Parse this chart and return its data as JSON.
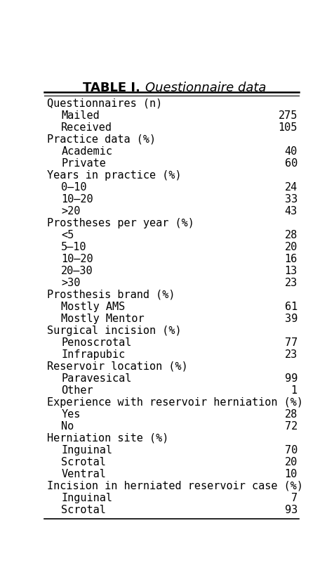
{
  "title_bold": "TABLE I.",
  "title_italic": "Questionnaire data",
  "rows": [
    {
      "label": "Questionnaires (n)",
      "value": "",
      "indent": false
    },
    {
      "label": "Mailed",
      "value": "275",
      "indent": true
    },
    {
      "label": "Received",
      "value": "105",
      "indent": true
    },
    {
      "label": "Practice data (%)",
      "value": "",
      "indent": false
    },
    {
      "label": "Academic",
      "value": "40",
      "indent": true
    },
    {
      "label": "Private",
      "value": "60",
      "indent": true
    },
    {
      "label": "Years in practice (%)",
      "value": "",
      "indent": false
    },
    {
      "label": "0–10",
      "value": "24",
      "indent": true
    },
    {
      "label": "10–20",
      "value": "33",
      "indent": true
    },
    {
      "label": ">20",
      "value": "43",
      "indent": true
    },
    {
      "label": "Prostheses per year (%)",
      "value": "",
      "indent": false
    },
    {
      "label": "<5",
      "value": "28",
      "indent": true
    },
    {
      "label": "5–10",
      "value": "20",
      "indent": true
    },
    {
      "label": "10–20",
      "value": "16",
      "indent": true
    },
    {
      "label": "20–30",
      "value": "13",
      "indent": true
    },
    {
      "label": ">30",
      "value": "23",
      "indent": true
    },
    {
      "label": "Prosthesis brand (%)",
      "value": "",
      "indent": false
    },
    {
      "label": "Mostly AMS",
      "value": "61",
      "indent": true
    },
    {
      "label": "Mostly Mentor",
      "value": "39",
      "indent": true
    },
    {
      "label": "Surgical incision (%)",
      "value": "",
      "indent": false
    },
    {
      "label": "Penoscrotal",
      "value": "77",
      "indent": true
    },
    {
      "label": "Infrapubic",
      "value": "23",
      "indent": true
    },
    {
      "label": "Reservoir location (%)",
      "value": "",
      "indent": false
    },
    {
      "label": "Paravesical",
      "value": "99",
      "indent": true
    },
    {
      "label": "Other",
      "value": "1",
      "indent": true
    },
    {
      "label": "Experience with reservoir herniation (%)",
      "value": "",
      "indent": false
    },
    {
      "label": "Yes",
      "value": "28",
      "indent": true
    },
    {
      "label": "No",
      "value": "72",
      "indent": true
    },
    {
      "label": "Herniation site (%)",
      "value": "",
      "indent": false
    },
    {
      "label": "Inguinal",
      "value": "70",
      "indent": true
    },
    {
      "label": "Scrotal",
      "value": "20",
      "indent": true
    },
    {
      "label": "Ventral",
      "value": "10",
      "indent": true
    },
    {
      "label": "Incision in herniated reservoir case (%)",
      "value": "",
      "indent": false
    },
    {
      "label": "Inguinal",
      "value": "7",
      "indent": true
    },
    {
      "label": "Scrotal",
      "value": "93",
      "indent": true
    }
  ],
  "font_size": 11.0,
  "title_font_size": 13.0,
  "bg_color": "#ffffff",
  "text_color": "#000000"
}
